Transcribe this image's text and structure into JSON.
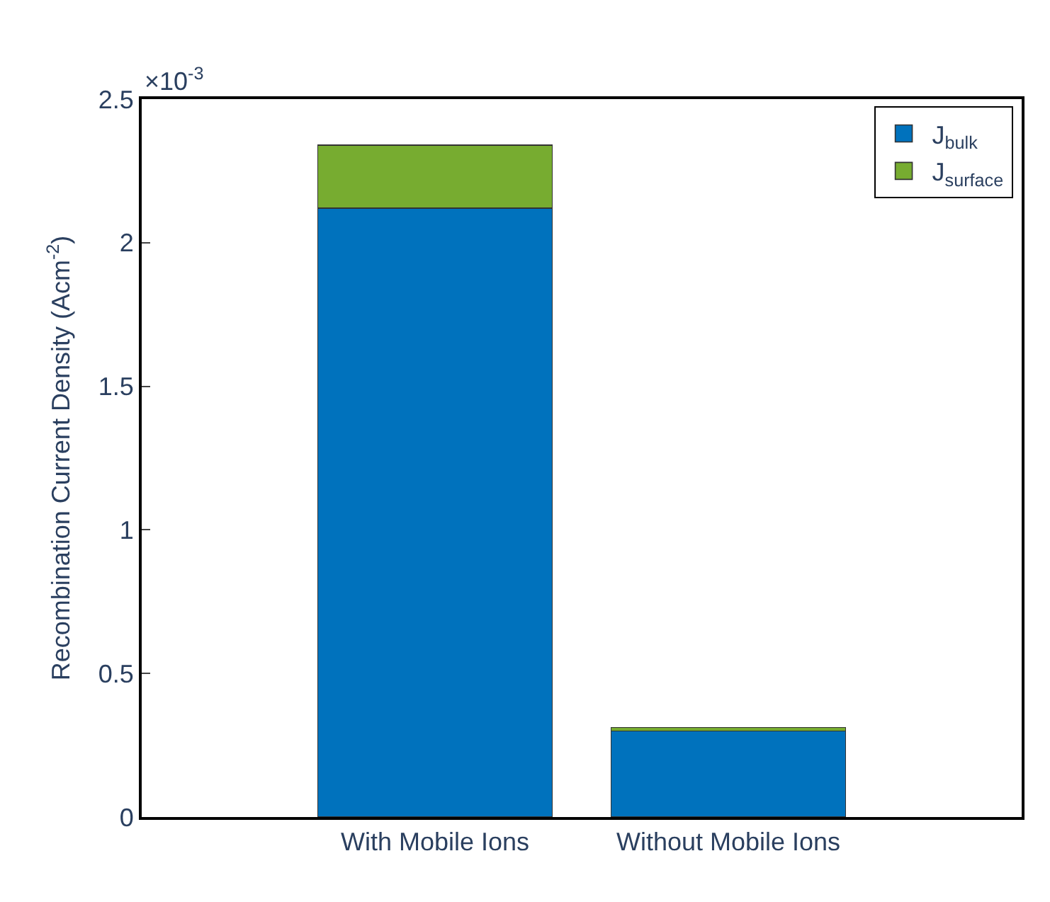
{
  "chart_data": {
    "type": "bar",
    "stacked": true,
    "categories": [
      "With Mobile Ions",
      "Without Mobile Ions"
    ],
    "series": [
      {
        "name": "J$_{bulk}$",
        "color": "#0072bd",
        "values": [
          2.12,
          0.3
        ]
      },
      {
        "name": "J$_{surface}$",
        "color": "#77ac30",
        "values": [
          0.22,
          0.012
        ]
      }
    ],
    "ylabel": "Recombination Current Density (Acm$^{-2}$)",
    "annotations": [
      "×10$^{-3}$"
    ],
    "ylim": [
      0,
      2.5
    ],
    "yticks": [
      0,
      0.5,
      1,
      1.5,
      2,
      2.5
    ],
    "legend": "top right"
  }
}
